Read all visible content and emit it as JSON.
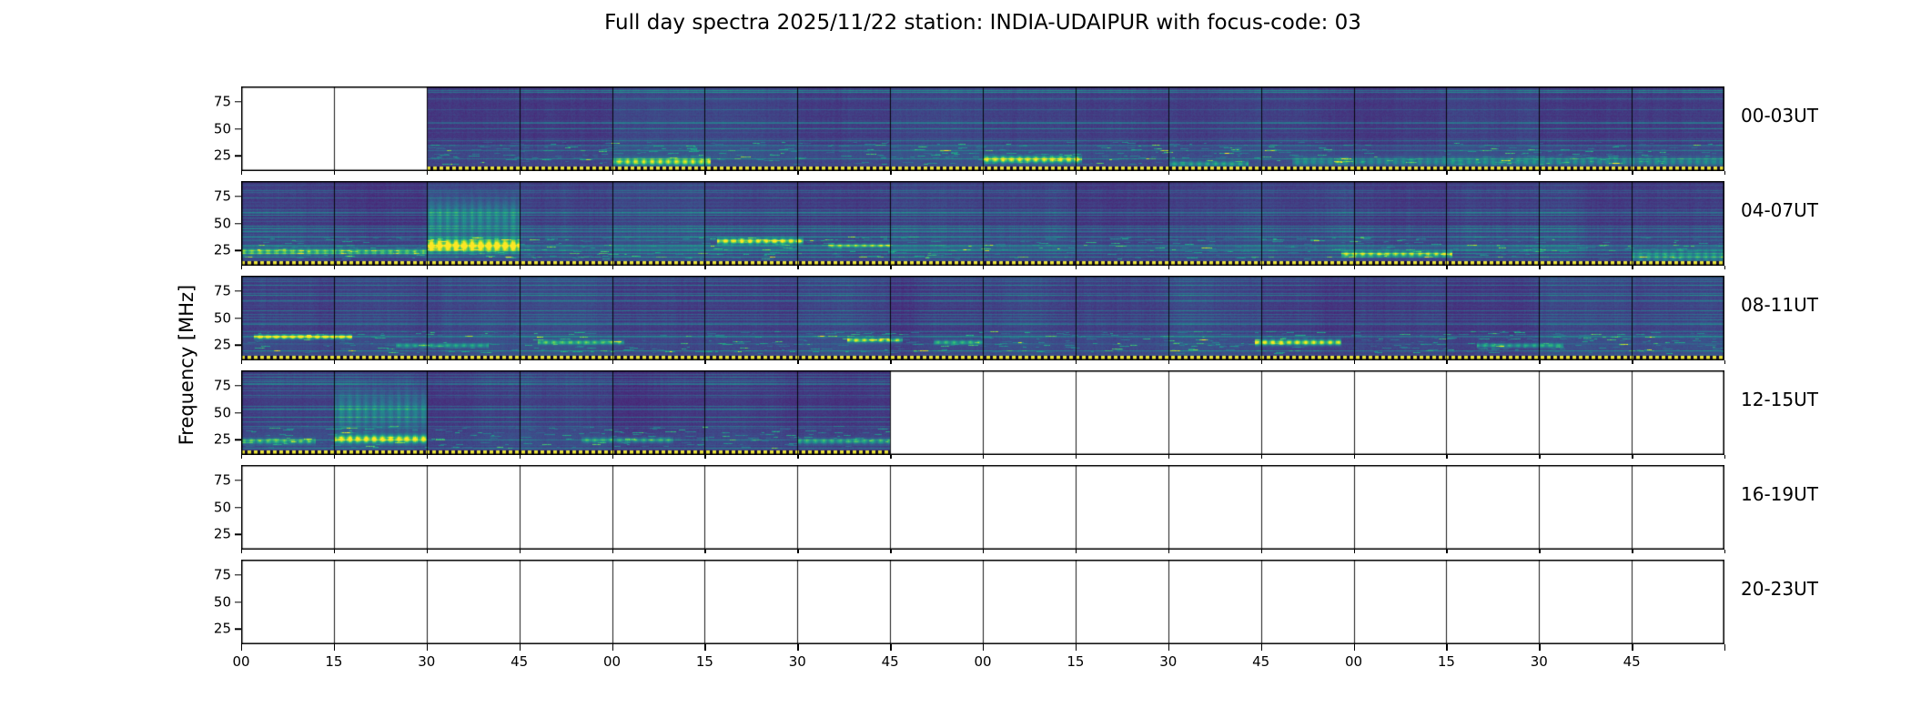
{
  "title": "Full day spectra 2025/11/22 station: INDIA-UDAIPUR with focus-code: 03",
  "y_axis": {
    "label": "Frequency [MHz]",
    "ticks": [
      75,
      50,
      25
    ]
  },
  "x_axis": {
    "tick_labels": [
      "00",
      "15",
      "30",
      "45",
      "00",
      "15",
      "30",
      "45",
      "00",
      "15",
      "30",
      "45",
      "00",
      "15",
      "30",
      "45"
    ],
    "minutes_per_row": 240,
    "segments_per_row": 16
  },
  "chart_data": {
    "type": "heatmap",
    "colormap": "viridis",
    "title": "Full day spectra 2025/11/22 station: INDIA-UDAIPUR with focus-code: 03",
    "station": "INDIA-UDAIPUR",
    "date": "2025/11/22",
    "focus_code": "03",
    "ylabel": "Frequency [MHz]",
    "freq_axis_mhz": {
      "ticks": [
        75,
        50,
        25
      ],
      "approx_range": [
        11,
        89
      ]
    },
    "rows": [
      {
        "label": "00-03UT",
        "filled": [
          [
            2,
            15
          ]
        ],
        "features": [
          {
            "t0_min": 60,
            "t1_min": 76,
            "freq_mhz": 20,
            "bw_mhz": 5,
            "intensity": 0.75
          },
          {
            "t0_min": 120,
            "t1_min": 136,
            "freq_mhz": 22,
            "bw_mhz": 5,
            "intensity": 0.8
          },
          {
            "t0_min": 150,
            "t1_min": 163,
            "freq_mhz": 18,
            "bw_mhz": 4,
            "intensity": 0.4
          },
          {
            "t0_min": 170,
            "t1_min": 240,
            "freq_mhz": 20,
            "bw_mhz": 6,
            "intensity": 0.3
          }
        ]
      },
      {
        "label": "04-07UT",
        "filled": [
          [
            0,
            15
          ]
        ],
        "features": [
          {
            "t0_min": 0,
            "t1_min": 30,
            "freq_mhz": 24,
            "bw_mhz": 4,
            "intensity": 0.55
          },
          {
            "t0_min": 30,
            "t1_min": 45,
            "freq_mhz": 30,
            "bw_mhz": 9,
            "intensity": 1.0
          },
          {
            "t0_min": 30,
            "t1_min": 45,
            "freq_mhz": 55,
            "bw_mhz": 28,
            "intensity": 0.3
          },
          {
            "t0_min": 77,
            "t1_min": 91,
            "freq_mhz": 34,
            "bw_mhz": 4,
            "intensity": 0.85
          },
          {
            "t0_min": 95,
            "t1_min": 105,
            "freq_mhz": 30,
            "bw_mhz": 3,
            "intensity": 0.5
          },
          {
            "t0_min": 178,
            "t1_min": 196,
            "freq_mhz": 22,
            "bw_mhz": 4,
            "intensity": 0.7
          },
          {
            "t0_min": 225,
            "t1_min": 240,
            "freq_mhz": 20,
            "bw_mhz": 8,
            "intensity": 0.35
          }
        ]
      },
      {
        "label": "08-11UT",
        "filled": [
          [
            0,
            15
          ]
        ],
        "features": [
          {
            "t0_min": 2,
            "t1_min": 18,
            "freq_mhz": 33,
            "bw_mhz": 3,
            "intensity": 0.95
          },
          {
            "t0_min": 25,
            "t1_min": 40,
            "freq_mhz": 25,
            "bw_mhz": 3,
            "intensity": 0.4
          },
          {
            "t0_min": 48,
            "t1_min": 62,
            "freq_mhz": 28,
            "bw_mhz": 3,
            "intensity": 0.55
          },
          {
            "t0_min": 98,
            "t1_min": 107,
            "freq_mhz": 30,
            "bw_mhz": 3,
            "intensity": 0.8
          },
          {
            "t0_min": 112,
            "t1_min": 120,
            "freq_mhz": 28,
            "bw_mhz": 3,
            "intensity": 0.5
          },
          {
            "t0_min": 164,
            "t1_min": 178,
            "freq_mhz": 28,
            "bw_mhz": 4,
            "intensity": 0.85
          },
          {
            "t0_min": 200,
            "t1_min": 214,
            "freq_mhz": 25,
            "bw_mhz": 3,
            "intensity": 0.45
          }
        ]
      },
      {
        "label": "12-15UT",
        "filled": [
          [
            0,
            6
          ]
        ],
        "features": [
          {
            "t0_min": 0,
            "t1_min": 12,
            "freq_mhz": 24,
            "bw_mhz": 4,
            "intensity": 0.5
          },
          {
            "t0_min": 15,
            "t1_min": 30,
            "freq_mhz": 26,
            "bw_mhz": 6,
            "intensity": 0.85
          },
          {
            "t0_min": 15,
            "t1_min": 30,
            "freq_mhz": 52,
            "bw_mhz": 28,
            "intensity": 0.28
          },
          {
            "t0_min": 55,
            "t1_min": 70,
            "freq_mhz": 25,
            "bw_mhz": 4,
            "intensity": 0.4
          },
          {
            "t0_min": 90,
            "t1_min": 105,
            "freq_mhz": 24,
            "bw_mhz": 4,
            "intensity": 0.45
          }
        ]
      },
      {
        "label": "16-19UT",
        "filled": [],
        "features": []
      },
      {
        "label": "20-23UT",
        "filled": [],
        "features": []
      }
    ]
  }
}
